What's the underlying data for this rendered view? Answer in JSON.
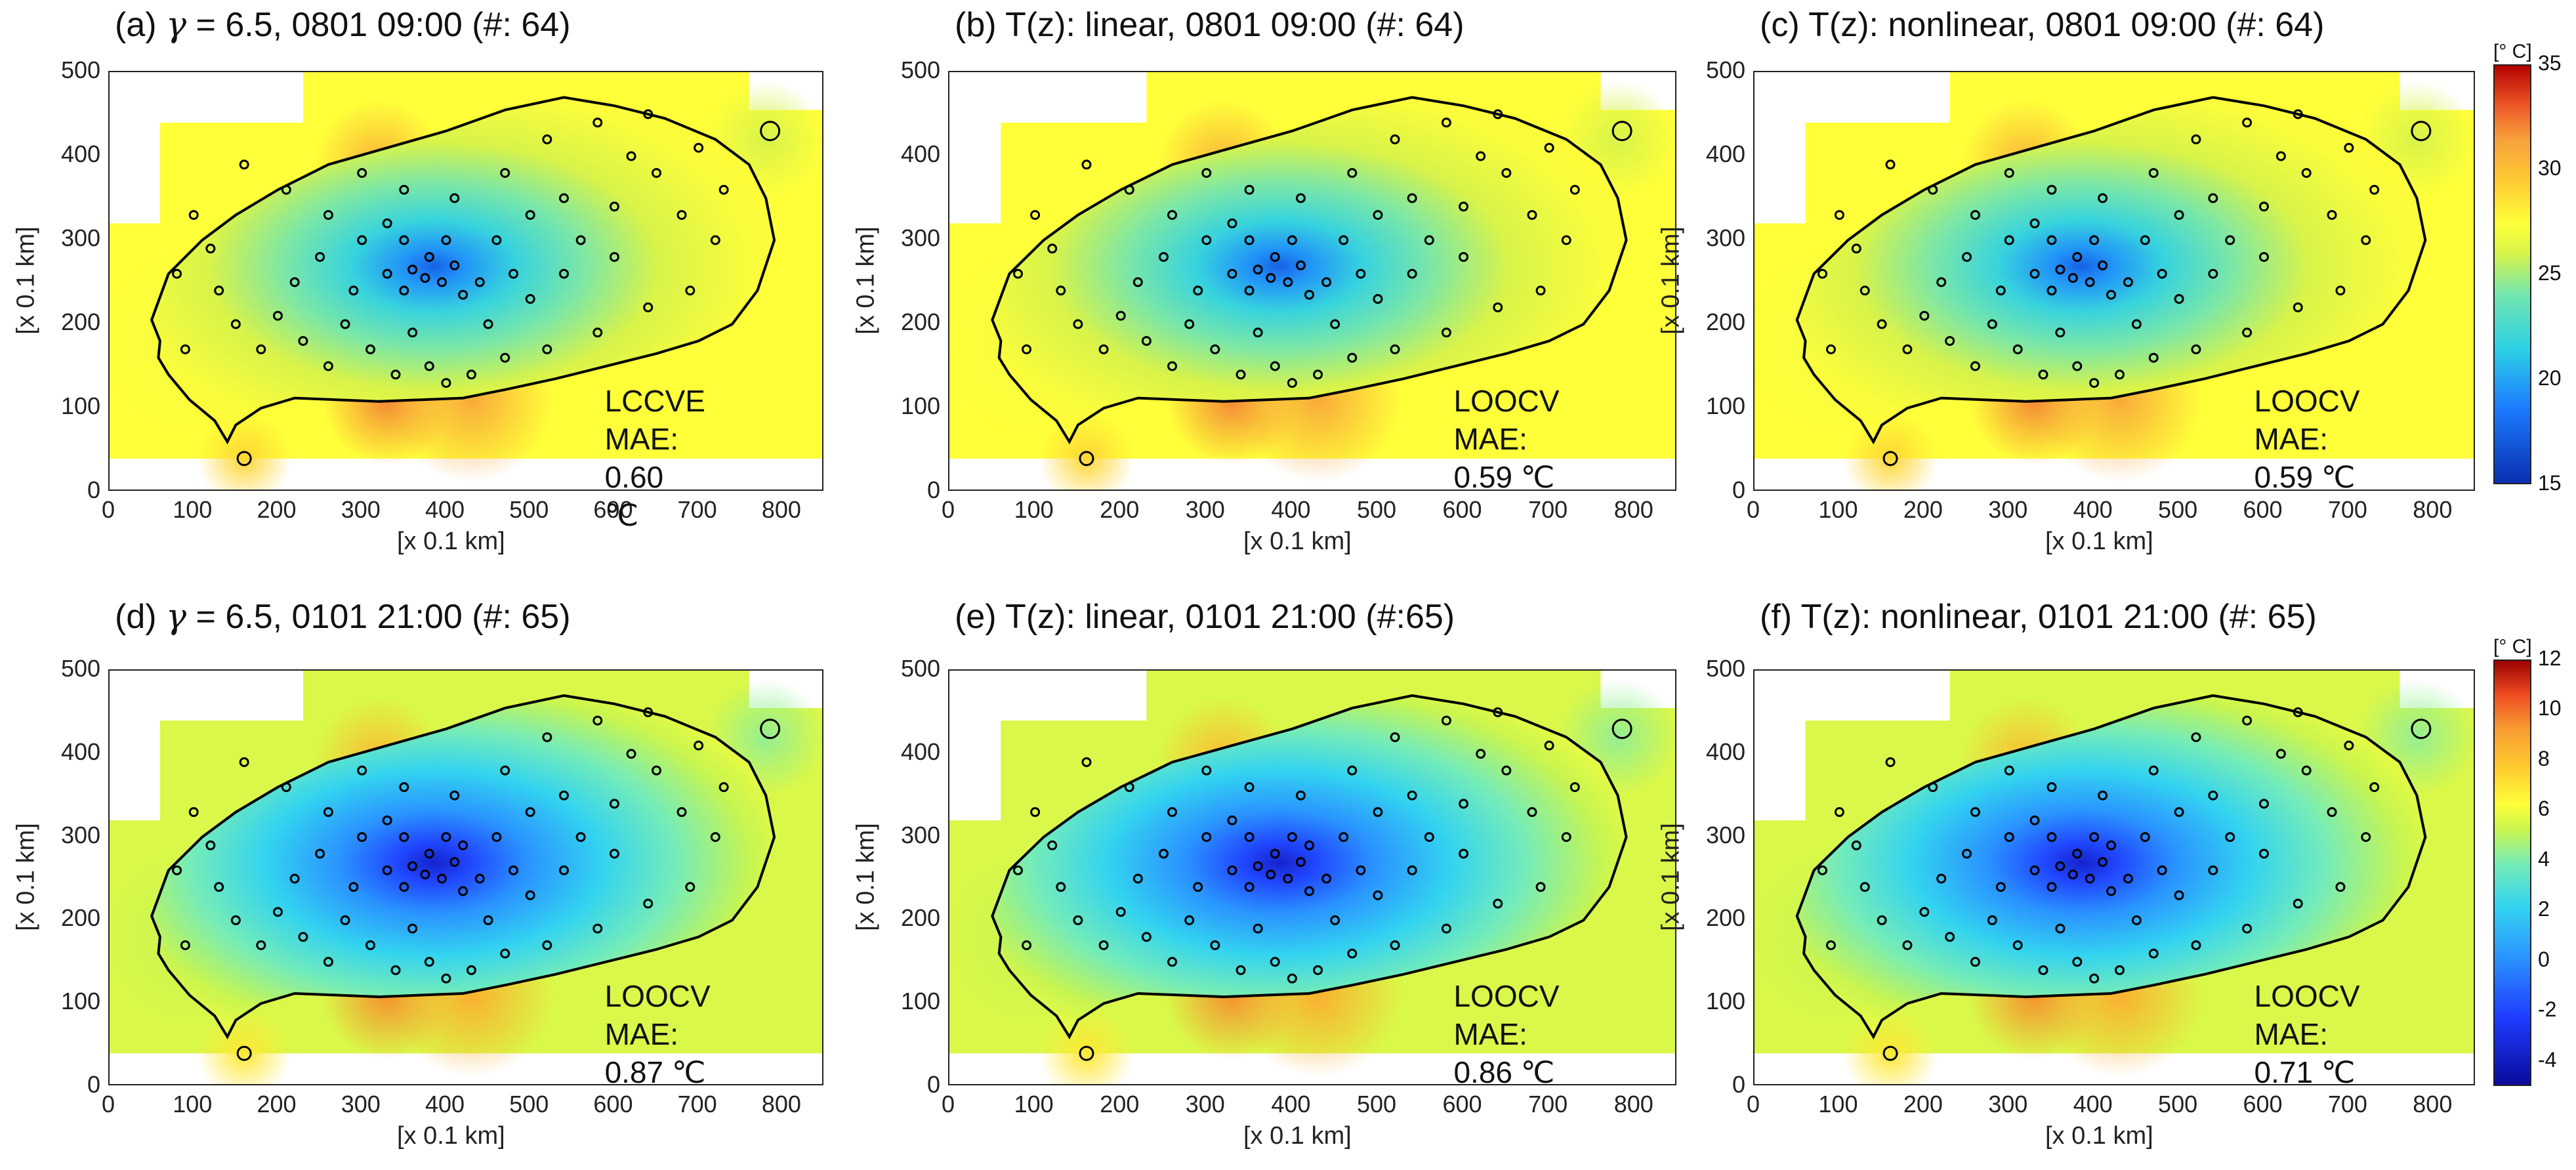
{
  "chart_data": [
    {
      "type": "heatmap",
      "id": "a",
      "title_prefix": "(a) ",
      "gamma_symbol": "γ",
      "title_suffix": " = 6.5,  0801 09:00 (#: 64)",
      "xlabel": "[x 0.1 km]",
      "ylabel": "[x 0.1 km]",
      "xlim": [
        0,
        850
      ],
      "ylim": [
        0,
        500
      ],
      "xticks": [
        "0",
        "100",
        "200",
        "300",
        "400",
        "500",
        "600",
        "700",
        "800"
      ],
      "yticks": [
        "0",
        "100",
        "200",
        "300",
        "400",
        "500"
      ],
      "mae_label": "LCCVE MAE:",
      "mae_value": "0.60 ℃",
      "scale": "summer",
      "n_stations": 64
    },
    {
      "type": "heatmap",
      "id": "b",
      "title": "(b) T(z): linear, 0801 09:00 (#: 64)",
      "xlabel": "[x 0.1 km]",
      "ylabel": "[x 0.1 km]",
      "xlim": [
        0,
        850
      ],
      "ylim": [
        0,
        500
      ],
      "xticks": [
        "0",
        "100",
        "200",
        "300",
        "400",
        "500",
        "600",
        "700",
        "800"
      ],
      "yticks": [
        "0",
        "100",
        "200",
        "300",
        "400",
        "500"
      ],
      "mae_label": "LOOCV MAE:",
      "mae_value": "0.59 ℃",
      "scale": "summer",
      "n_stations": 64
    },
    {
      "type": "heatmap",
      "id": "c",
      "title": "(c) T(z): nonlinear, 0801 09:00 (#: 64)",
      "xlabel": "[x 0.1 km]",
      "ylabel": "[x 0.1 km]",
      "xlim": [
        0,
        850
      ],
      "ylim": [
        0,
        500
      ],
      "xticks": [
        "0",
        "100",
        "200",
        "300",
        "400",
        "500",
        "600",
        "700",
        "800"
      ],
      "yticks": [
        "0",
        "100",
        "200",
        "300",
        "400",
        "500"
      ],
      "mae_label": "LOOCV MAE:",
      "mae_value": "0.59 ℃",
      "scale": "summer",
      "n_stations": 64
    },
    {
      "type": "heatmap",
      "id": "d",
      "title_prefix": "(d) ",
      "gamma_symbol": "γ",
      "title_suffix": " = 6.5,  0101 21:00 (#: 65)",
      "xlabel": "[x 0.1 km]",
      "ylabel": "[x 0.1 km]",
      "xlim": [
        0,
        850
      ],
      "ylim": [
        0,
        500
      ],
      "xticks": [
        "0",
        "100",
        "200",
        "300",
        "400",
        "500",
        "600",
        "700",
        "800"
      ],
      "yticks": [
        "0",
        "100",
        "200",
        "300",
        "400",
        "500"
      ],
      "mae_label": "LOOCV MAE:",
      "mae_value": "0.87 ℃",
      "scale": "winter",
      "n_stations": 65
    },
    {
      "type": "heatmap",
      "id": "e",
      "title": "(e) T(z): linear, 0101 21:00 (#:65)",
      "xlabel": "[x 0.1 km]",
      "ylabel": "[x 0.1 km]",
      "xlim": [
        0,
        850
      ],
      "ylim": [
        0,
        500
      ],
      "xticks": [
        "0",
        "100",
        "200",
        "300",
        "400",
        "500",
        "600",
        "700",
        "800"
      ],
      "yticks": [
        "0",
        "100",
        "200",
        "300",
        "400",
        "500"
      ],
      "mae_label": "LOOCV MAE:",
      "mae_value": "0.86 ℃",
      "scale": "winter",
      "n_stations": 65
    },
    {
      "type": "heatmap",
      "id": "f",
      "title": "(f) T(z): nonlinear, 0101 21:00 (#: 65)",
      "xlabel": "[x 0.1 km]",
      "ylabel": "[x 0.1 km]",
      "xlim": [
        0,
        850
      ],
      "ylim": [
        0,
        500
      ],
      "xticks": [
        "0",
        "100",
        "200",
        "300",
        "400",
        "500",
        "600",
        "700",
        "800"
      ],
      "yticks": [
        "0",
        "100",
        "200",
        "300",
        "400",
        "500"
      ],
      "mae_label": "LOOCV MAE:",
      "mae_value": "0.71 ℃",
      "scale": "winter",
      "n_stations": 65
    }
  ],
  "colorbars": {
    "summer": {
      "unit": "[° C]",
      "min": 15,
      "max": 35,
      "ticks": [
        "35",
        "30",
        "25",
        "20",
        "15"
      ]
    },
    "winter": {
      "unit": "[° C]",
      "min": -5,
      "max": 12,
      "ticks": [
        "12",
        "10",
        "8",
        "6",
        "4",
        "2",
        "0",
        "-2",
        "-4"
      ]
    }
  }
}
